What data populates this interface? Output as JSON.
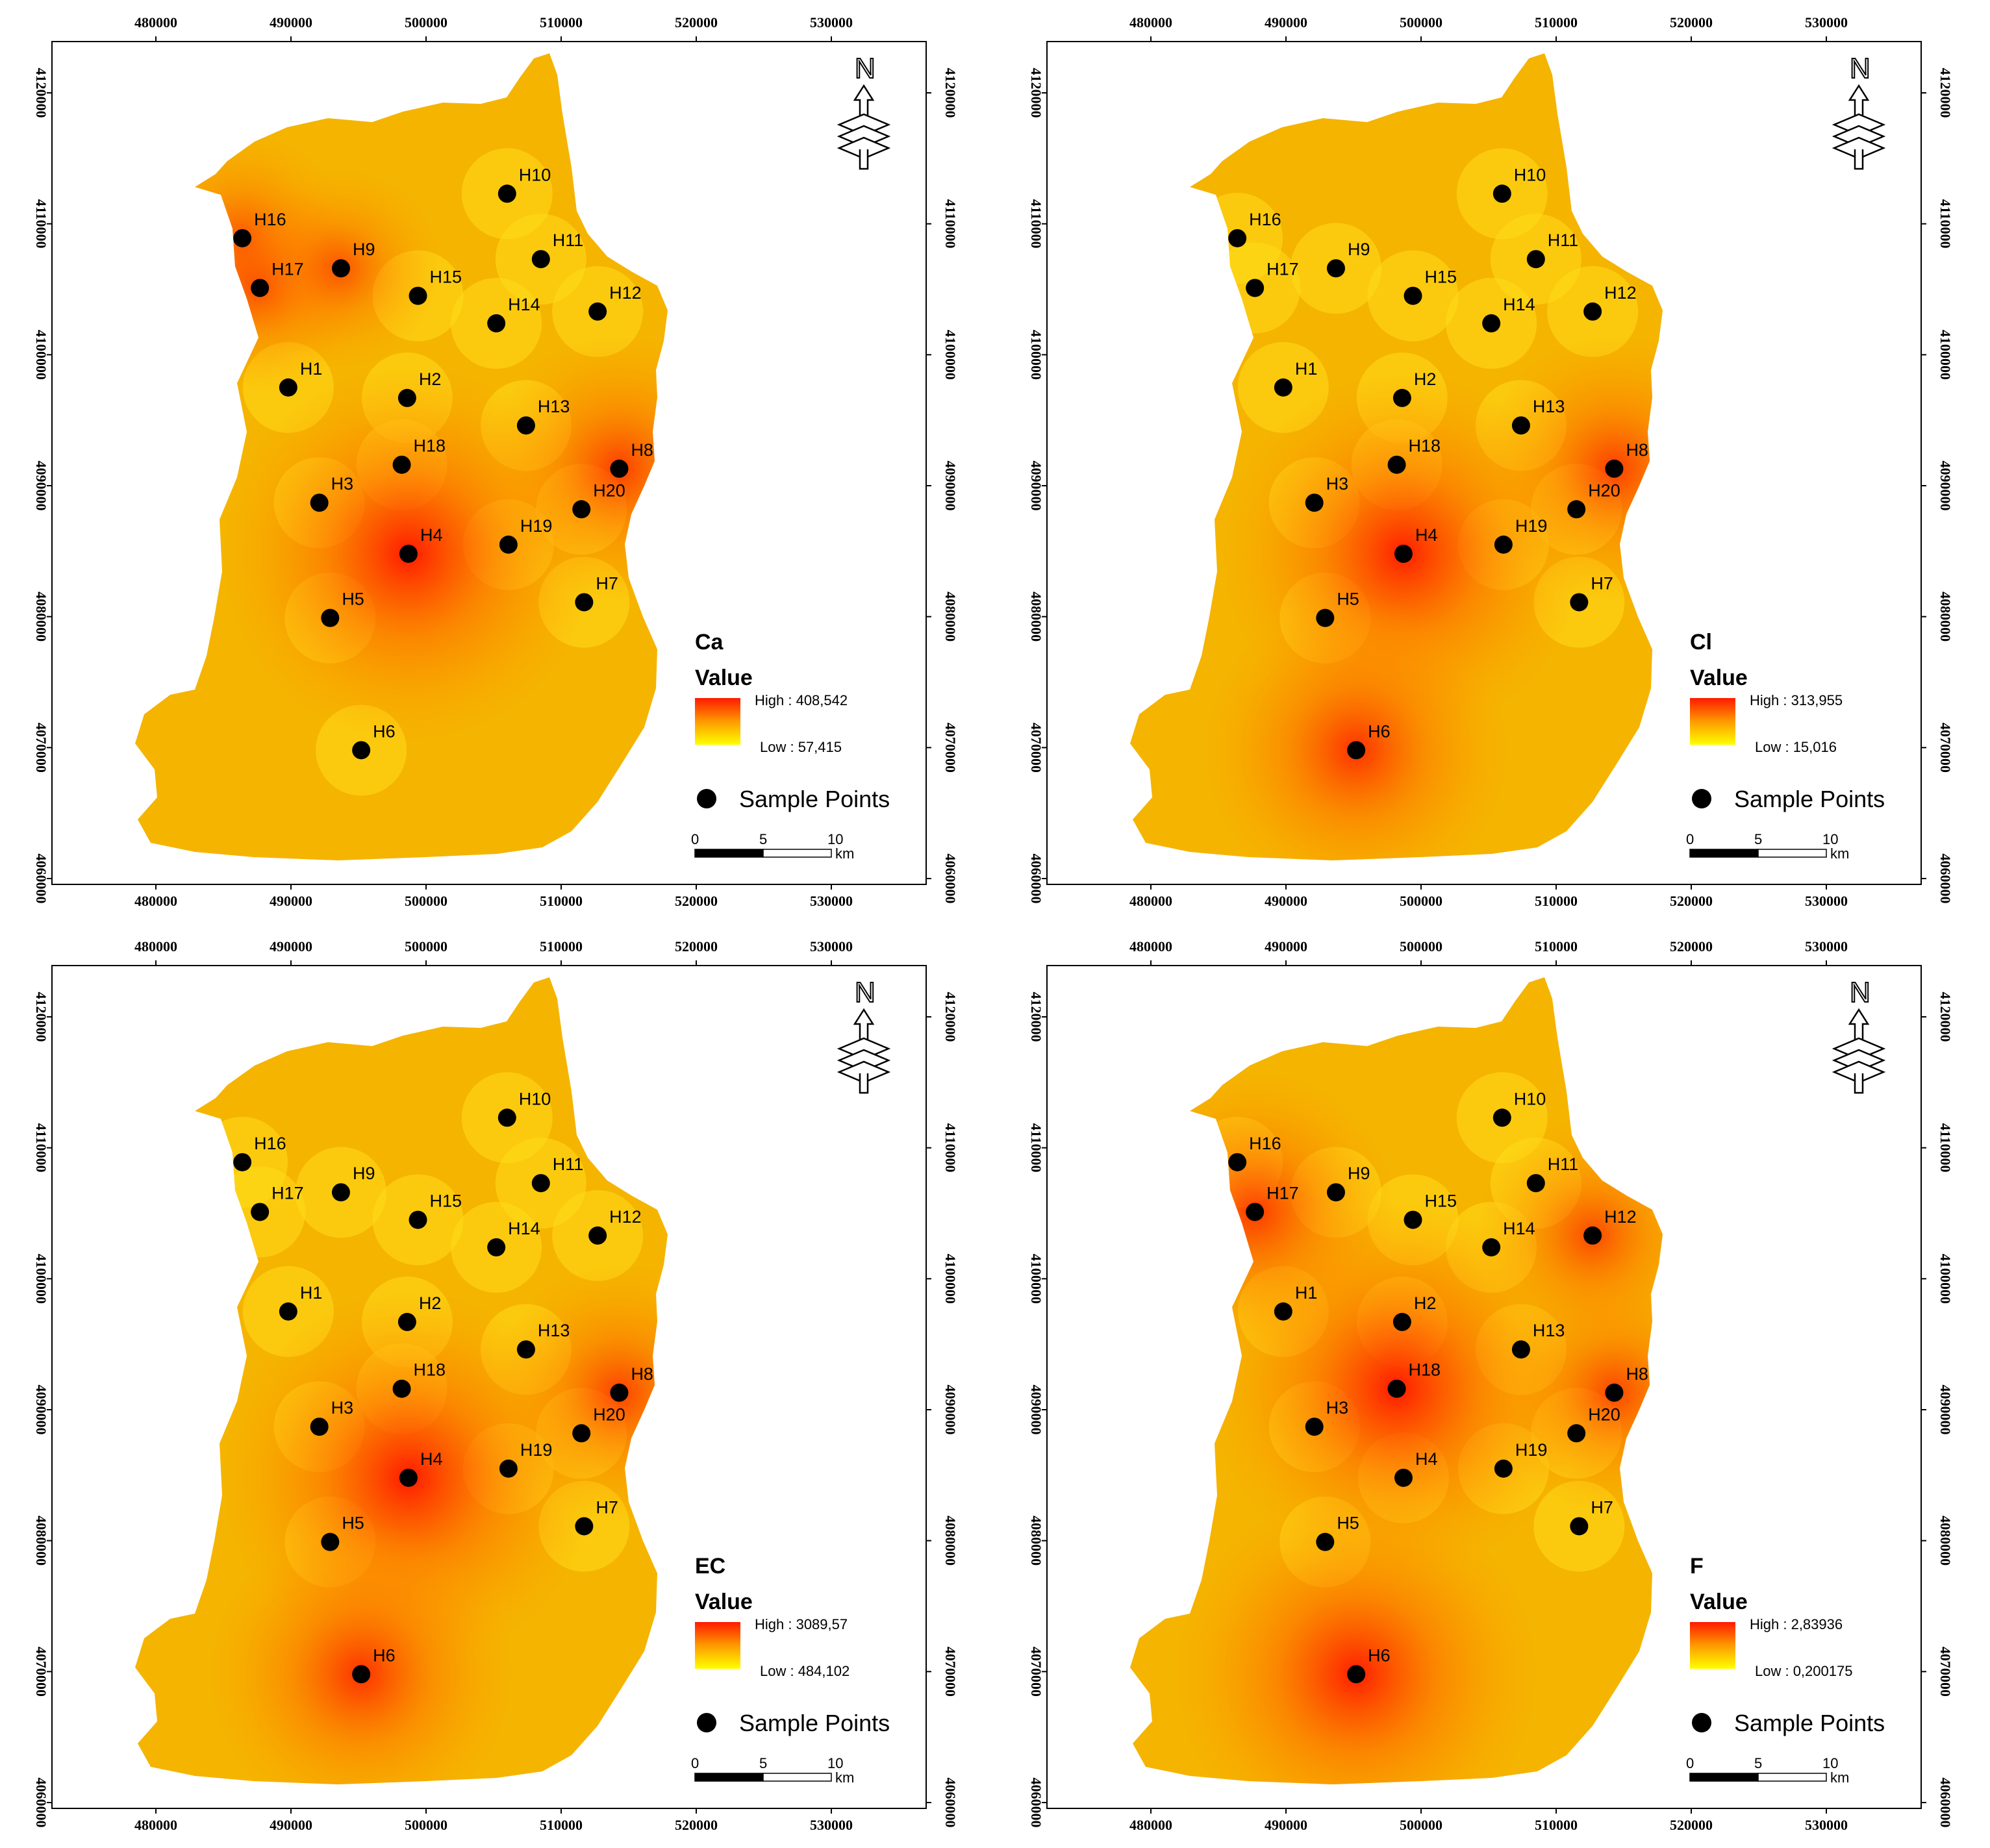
{
  "x_ticks": [
    "480000",
    "490000",
    "500000",
    "510000",
    "520000",
    "530000"
  ],
  "y_ticks": [
    "4120000",
    "4110000",
    "4100000",
    "4090000",
    "4080000",
    "4070000",
    "4060000"
  ],
  "north_label": "N",
  "value_label": "Value",
  "sample_points_label": "Sample Points",
  "scale": {
    "labels": [
      "0",
      "5",
      "10"
    ],
    "unit": "km"
  },
  "colors": {
    "high": "#ff1a00",
    "low": "#ffff00",
    "mid": "#f5b400",
    "point": "#000000"
  },
  "icons": [
    "north-arrow-icon",
    "sample-point-icon"
  ],
  "points": [
    {
      "id": "H1",
      "x": 489800,
      "y": 4097500
    },
    {
      "id": "H2",
      "x": 498600,
      "y": 4096700
    },
    {
      "id": "H3",
      "x": 492100,
      "y": 4088700
    },
    {
      "id": "H4",
      "x": 498700,
      "y": 4084800
    },
    {
      "id": "H5",
      "x": 492900,
      "y": 4079900
    },
    {
      "id": "H6",
      "x": 495200,
      "y": 4069800
    },
    {
      "id": "H7",
      "x": 511700,
      "y": 4081100
    },
    {
      "id": "H8",
      "x": 514300,
      "y": 4091300
    },
    {
      "id": "H9",
      "x": 493700,
      "y": 4106600
    },
    {
      "id": "H10",
      "x": 506000,
      "y": 4112300
    },
    {
      "id": "H11",
      "x": 508500,
      "y": 4107300
    },
    {
      "id": "H12",
      "x": 512700,
      "y": 4103300
    },
    {
      "id": "H13",
      "x": 507400,
      "y": 4094600
    },
    {
      "id": "H14",
      "x": 505200,
      "y": 4102400
    },
    {
      "id": "H15",
      "x": 499400,
      "y": 4104500
    },
    {
      "id": "H16",
      "x": 486400,
      "y": 4108900
    },
    {
      "id": "H17",
      "x": 487700,
      "y": 4105100
    },
    {
      "id": "H18",
      "x": 498200,
      "y": 4091600
    },
    {
      "id": "H19",
      "x": 506100,
      "y": 4085500
    },
    {
      "id": "H20",
      "x": 511500,
      "y": 4088200
    }
  ],
  "panels": [
    {
      "parameter": "Ca",
      "high": "High : 408,542",
      "low": "Low : 57,415",
      "hotspots": {
        "H4": 1.0,
        "H8": 0.55,
        "H16": 0.3,
        "H17": 0.3,
        "H9": 0.25
      }
    },
    {
      "parameter": "Cl",
      "high": "High : 313,955",
      "low": "Low : 15,016",
      "hotspots": {
        "H4": 0.95,
        "H6": 0.7,
        "H8": 0.55
      }
    },
    {
      "parameter": "EC",
      "high": "High : 3089,57",
      "low": "Low : 484,102",
      "hotspots": {
        "H4": 1.0,
        "H6": 0.7,
        "H8": 0.5
      }
    },
    {
      "parameter": "F",
      "high": "High : 2,83936",
      "low": "Low : 0,200175",
      "hotspots": {
        "H18": 1.0,
        "H6": 0.95,
        "H17": 0.6,
        "H8": 0.45,
        "H12": 0.4
      }
    }
  ]
}
